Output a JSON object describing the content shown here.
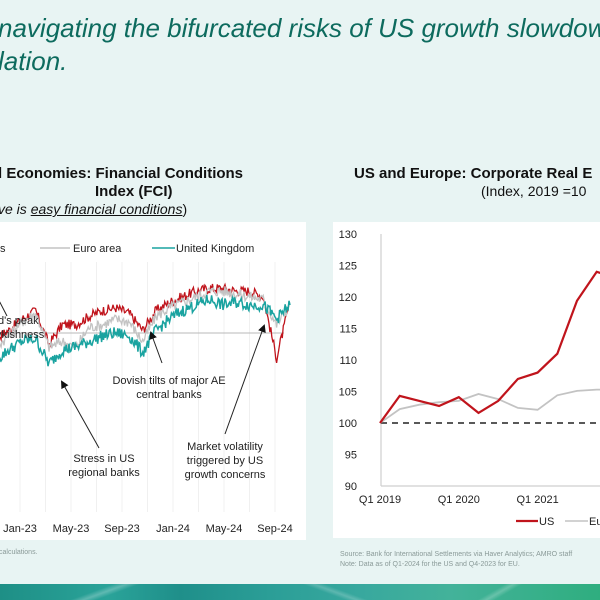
{
  "slide": {
    "title_line1": "navigating the bifurcated risks of US growth slowdow",
    "title_line2": "lation."
  },
  "colors": {
    "us": "#c0141c",
    "euro": "#c3c3c3",
    "uk": "#1aa3a0",
    "title": "#0d6b5e"
  },
  "chart_data": [
    {
      "type": "line",
      "title_line1": "l Economies: Financial Conditions",
      "title_line2": "Index (FCI)",
      "subtitle_prefix": "ve is ",
      "subtitle_underlined": "easy financial conditions",
      "subtitle_suffix": ")",
      "xlabel": "",
      "ylabel": "",
      "x_ticks": [
        "Jan-23",
        "May-23",
        "Sep-23",
        "Jan-24",
        "May-24",
        "Sep-24"
      ],
      "grid": "vertical",
      "reference_line": 0,
      "legend": [
        {
          "label": "s",
          "color": "#c0141c"
        },
        {
          "label": "Euro area",
          "color": "#c3c3c3"
        },
        {
          "label": "United Kingdom",
          "color": "#1aa3a0"
        }
      ],
      "legend_position": "top",
      "series": [
        {
          "name": "US (partially visible)",
          "color": "#c0141c",
          "x": [
            "Oct-22",
            "Nov-22",
            "Dec-22",
            "Jan-23",
            "Feb-23",
            "Mar-23",
            "Apr-23",
            "May-23",
            "Jun-23",
            "Jul-23",
            "Aug-23",
            "Sep-23",
            "Oct-23",
            "Nov-23",
            "Dec-23",
            "Jan-24",
            "Feb-24",
            "Mar-24",
            "Apr-24",
            "May-24",
            "Jun-24",
            "Jul-24",
            "Aug-24",
            "Sep-24"
          ],
          "values": [
            -0.6,
            -0.2,
            0.1,
            0.5,
            0.8,
            -0.4,
            0.3,
            0.3,
            0.6,
            0.8,
            0.9,
            0.7,
            0.1,
            0.8,
            1.1,
            1.3,
            1.5,
            1.6,
            1.6,
            1.5,
            1.5,
            1.3,
            -0.9,
            1.1
          ]
        },
        {
          "name": "Euro area",
          "color": "#c3c3c3",
          "x": [
            "Oct-22",
            "Nov-22",
            "Dec-22",
            "Jan-23",
            "Feb-23",
            "Mar-23",
            "Apr-23",
            "May-23",
            "Jun-23",
            "Jul-23",
            "Aug-23",
            "Sep-23",
            "Oct-23",
            "Nov-23",
            "Dec-23",
            "Jan-24",
            "Feb-24",
            "Mar-24",
            "Apr-24",
            "May-24",
            "Jun-24",
            "Jul-24",
            "Aug-24",
            "Sep-24"
          ],
          "values": [
            -1.0,
            -0.5,
            -0.1,
            0.4,
            0.7,
            -0.5,
            -0.3,
            -0.5,
            0.2,
            0.3,
            0.5,
            0.4,
            -0.3,
            0.6,
            0.9,
            1.1,
            1.3,
            1.5,
            1.5,
            1.4,
            1.3,
            1.2,
            0.3,
            1.0
          ]
        },
        {
          "name": "United Kingdom",
          "color": "#1aa3a0",
          "x": [
            "Oct-22",
            "Nov-22",
            "Dec-22",
            "Jan-23",
            "Feb-23",
            "Mar-23",
            "Apr-23",
            "May-23",
            "Jun-23",
            "Jul-23",
            "Aug-23",
            "Sep-23",
            "Oct-23",
            "Nov-23",
            "Dec-23",
            "Jan-24",
            "Feb-24",
            "Mar-24",
            "Apr-24",
            "May-24",
            "Jun-24",
            "Jul-24",
            "Aug-24",
            "Sep-24"
          ],
          "values": [
            -1.6,
            -1.0,
            -0.6,
            -0.3,
            -0.2,
            -1.1,
            -0.6,
            -0.5,
            -0.3,
            -0.1,
            0.0,
            -0.1,
            -0.7,
            0.1,
            0.5,
            0.8,
            1.0,
            1.2,
            1.0,
            1.1,
            1.0,
            1.0,
            0.5,
            1.0
          ]
        }
      ],
      "annotations": [
        {
          "text_line1": "d's peak",
          "text_line2": "vkishness"
        },
        {
          "text_line1": "Stress in US",
          "text_line2": "regional banks"
        },
        {
          "text_line1": "Dovish tilts of major AE",
          "text_line2": "central banks"
        },
        {
          "text_line1": "Market volatility",
          "text_line2": "triggered by US",
          "text_line3": "growth concerns"
        }
      ],
      "source": "calculations."
    },
    {
      "type": "line",
      "title_line1": "US and Europe: Corporate Real E",
      "title_line2": "(Index, 2019 =10",
      "xlabel": "",
      "ylabel": "",
      "ylim": [
        90,
        130
      ],
      "y_ticks": [
        "130",
        "125",
        "120",
        "115",
        "110",
        "105",
        "100",
        "95",
        "90"
      ],
      "x_ticks": [
        "Q1 2019",
        "Q1 2020",
        "Q1 2021",
        "Q"
      ],
      "reference_line": 100,
      "legend": [
        {
          "label": "US",
          "color": "#c0141c"
        },
        {
          "label": "Eu",
          "color": "#c3c3c3"
        }
      ],
      "legend_position": "bottom",
      "categories": [
        "Q1 2019",
        "Q2 2019",
        "Q3 2019",
        "Q4 2019",
        "Q1 2020",
        "Q2 2020",
        "Q3 2020",
        "Q4 2020",
        "Q1 2021",
        "Q2 2021",
        "Q3 2021",
        "Q4 2021",
        "Q1 2022"
      ],
      "series": [
        {
          "name": "US",
          "color": "#c0141c",
          "values": [
            100,
            104.3,
            103.5,
            102.7,
            104.1,
            101.6,
            103.5,
            107,
            108,
            111,
            119.4,
            124,
            123
          ]
        },
        {
          "name": "Eu",
          "color": "#c3c3c3",
          "values": [
            100,
            102.2,
            102.9,
            103.3,
            103.5,
            104.6,
            103.8,
            102.4,
            102.1,
            104.4,
            105.1,
            105.3,
            105.3
          ]
        }
      ],
      "source_line1": "Source: Bank for International Settlements via Haver Analytics; AMRO staff",
      "source_line2": "Note: Data as of Q1-2024 for the US and Q4-2023 for EU."
    }
  ]
}
